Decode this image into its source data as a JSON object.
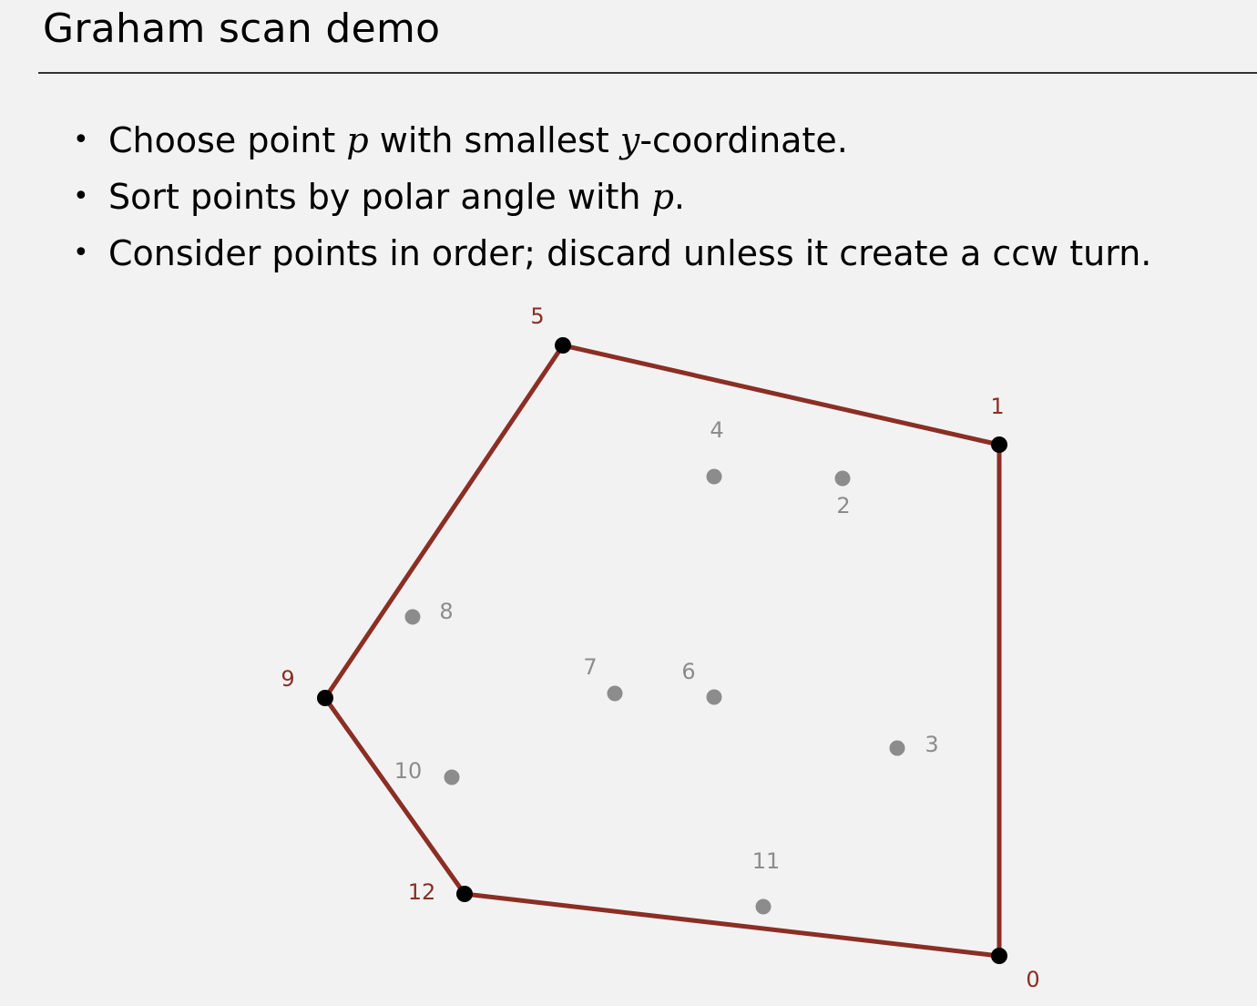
{
  "slide": {
    "title": "Graham scan demo"
  },
  "bullets": [
    {
      "bullet": "•",
      "parts": [
        "Choose point ",
        "p",
        " with smallest ",
        "y",
        "-coordinate."
      ]
    },
    {
      "bullet": "•",
      "parts": [
        "Sort points by polar angle with ",
        "p",
        "."
      ]
    },
    {
      "bullet": "•",
      "parts": [
        "Consider points in order; discard unless it create a ccw turn."
      ]
    }
  ],
  "colors": {
    "hull": "#8b2e24",
    "hull_label": "#8b2e24",
    "hull_point": "#000000",
    "interior_point": "#8c8c8c",
    "interior_label": "#8c8c8c",
    "background": "#f2f2f2"
  },
  "points": [
    {
      "label": "0",
      "hull": true
    },
    {
      "label": "1",
      "hull": true
    },
    {
      "label": "2",
      "hull": false
    },
    {
      "label": "3",
      "hull": false
    },
    {
      "label": "4",
      "hull": false
    },
    {
      "label": "5",
      "hull": true
    },
    {
      "label": "6",
      "hull": false
    },
    {
      "label": "7",
      "hull": false
    },
    {
      "label": "8",
      "hull": false
    },
    {
      "label": "9",
      "hull": true
    },
    {
      "label": "10",
      "hull": false
    },
    {
      "label": "11",
      "hull": false
    },
    {
      "label": "12",
      "hull": true
    }
  ],
  "hull_order": [
    "0",
    "1",
    "5",
    "9",
    "12",
    "0"
  ]
}
